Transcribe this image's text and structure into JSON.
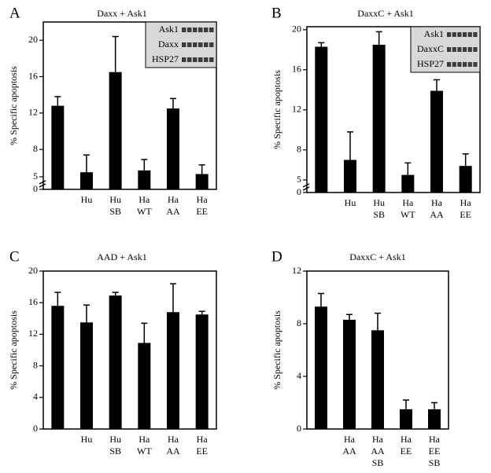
{
  "chart_data": [
    {
      "type": "bar",
      "panel": "A",
      "title": "Daxx + Ask1",
      "ylabel": "% Specific apoptosis",
      "categories": [
        null,
        [
          "Hu"
        ],
        [
          "Hu",
          "SB"
        ],
        [
          "Ha",
          "WT"
        ],
        [
          "Ha",
          "AA"
        ],
        [
          "Ha",
          "EE"
        ]
      ],
      "values": [
        12.8,
        5.5,
        16.5,
        5.7,
        12.5,
        5.3
      ],
      "errors": [
        1.0,
        1.9,
        3.9,
        1.2,
        1.1,
        1.0
      ],
      "color": "#000000",
      "ylim": [
        0,
        22
      ],
      "yticks": [
        0,
        5,
        8,
        12,
        16,
        20
      ],
      "axis_break": true,
      "inset_labels": [
        "Ask1",
        "Daxx",
        "HSP27"
      ]
    },
    {
      "type": "bar",
      "panel": "B",
      "title": "DaxxC + Ask1",
      "ylabel": "% Specific apoptosis",
      "categories": [
        null,
        [
          "Hu"
        ],
        [
          "Hu",
          "SB"
        ],
        [
          "Ha",
          "WT"
        ],
        [
          "Ha",
          "AA"
        ],
        [
          "Ha",
          "EE"
        ]
      ],
      "values": [
        18.3,
        7.0,
        18.5,
        5.5,
        13.9,
        6.4
      ],
      "errors": [
        0.4,
        2.8,
        1.3,
        1.2,
        1.1,
        1.2
      ],
      "color": "#000000",
      "ylim": [
        0,
        20.3
      ],
      "yticks": [
        0,
        5,
        8,
        12,
        16,
        20
      ],
      "axis_break": true,
      "inset_labels": [
        "Ask1",
        "DaxxC",
        "HSP27"
      ]
    },
    {
      "type": "bar",
      "panel": "C",
      "title": "AAD + Ask1",
      "ylabel": "% Specific apoptosis",
      "categories": [
        null,
        [
          "Hu"
        ],
        [
          "Hu",
          "SB"
        ],
        [
          "Ha",
          "WT"
        ],
        [
          "Ha",
          "AA"
        ],
        [
          "Ha",
          "EE"
        ]
      ],
      "values": [
        15.6,
        13.5,
        16.9,
        10.9,
        14.8,
        14.5
      ],
      "errors": [
        1.7,
        2.2,
        0.4,
        2.5,
        3.6,
        0.4
      ],
      "color": "#000000",
      "ylim": [
        0,
        20
      ],
      "yticks": [
        0,
        4,
        8,
        12,
        16,
        20
      ],
      "axis_break": false
    },
    {
      "type": "bar",
      "panel": "D",
      "title": "DaxxC + Ask1",
      "ylabel": "% Specific apoptosis",
      "categories": [
        null,
        [
          "Ha",
          "AA"
        ],
        [
          "Ha",
          "AA",
          "SB"
        ],
        [
          "Ha",
          "EE"
        ],
        [
          "Ha",
          "EE",
          "SB"
        ]
      ],
      "values": [
        9.3,
        8.3,
        7.5,
        1.5,
        1.5
      ],
      "errors": [
        1.0,
        0.4,
        1.3,
        0.7,
        0.5
      ],
      "color": "#000000",
      "ylim": [
        0,
        12
      ],
      "yticks": [
        0,
        4,
        8,
        12
      ],
      "axis_break": false
    }
  ]
}
